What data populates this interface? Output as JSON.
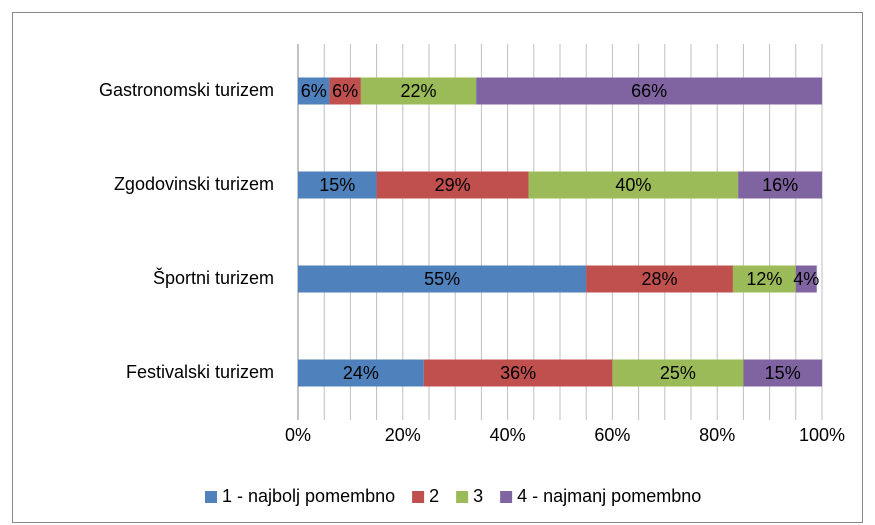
{
  "chart_data": {
    "type": "bar",
    "orientation": "horizontal",
    "stacked": true,
    "categories": [
      "Festivalski turizem",
      "Športni turizem",
      "Zgodovinski turizem",
      "Gastronomski turizem"
    ],
    "series": [
      {
        "name": "1 - najbolj pomembno",
        "color": "#4f81bd",
        "values": [
          24,
          55,
          15,
          6
        ],
        "value_labels": [
          "24%",
          "55%",
          "15%",
          "6%"
        ]
      },
      {
        "name": "2",
        "color": "#c0504d",
        "values": [
          36,
          28,
          29,
          6
        ],
        "value_labels": [
          "36%",
          "28%",
          "29%",
          "6%"
        ]
      },
      {
        "name": "3",
        "color": "#9bbb59",
        "values": [
          25,
          12,
          40,
          22
        ],
        "value_labels": [
          "25%",
          "12%",
          "40%",
          "22%"
        ]
      },
      {
        "name": "4 - najmanj pomembno",
        "color": "#8064a2",
        "values": [
          15,
          4,
          16,
          66
        ],
        "value_labels": [
          "15%",
          "4%",
          "16%",
          "66%"
        ]
      }
    ],
    "xlim": [
      0,
      100
    ],
    "xticks": [
      {
        "value": 0,
        "label": "0%"
      },
      {
        "value": 20,
        "label": "20%"
      },
      {
        "value": 40,
        "label": "40%"
      },
      {
        "value": 60,
        "label": "60%"
      },
      {
        "value": 80,
        "label": "80%"
      },
      {
        "value": 100,
        "label": "100%"
      }
    ],
    "x_minor_ticks": [
      5,
      10,
      15,
      25,
      30,
      35,
      45,
      50,
      55,
      65,
      70,
      75,
      85,
      90,
      95
    ],
    "grid": true,
    "legend": "bottom"
  }
}
